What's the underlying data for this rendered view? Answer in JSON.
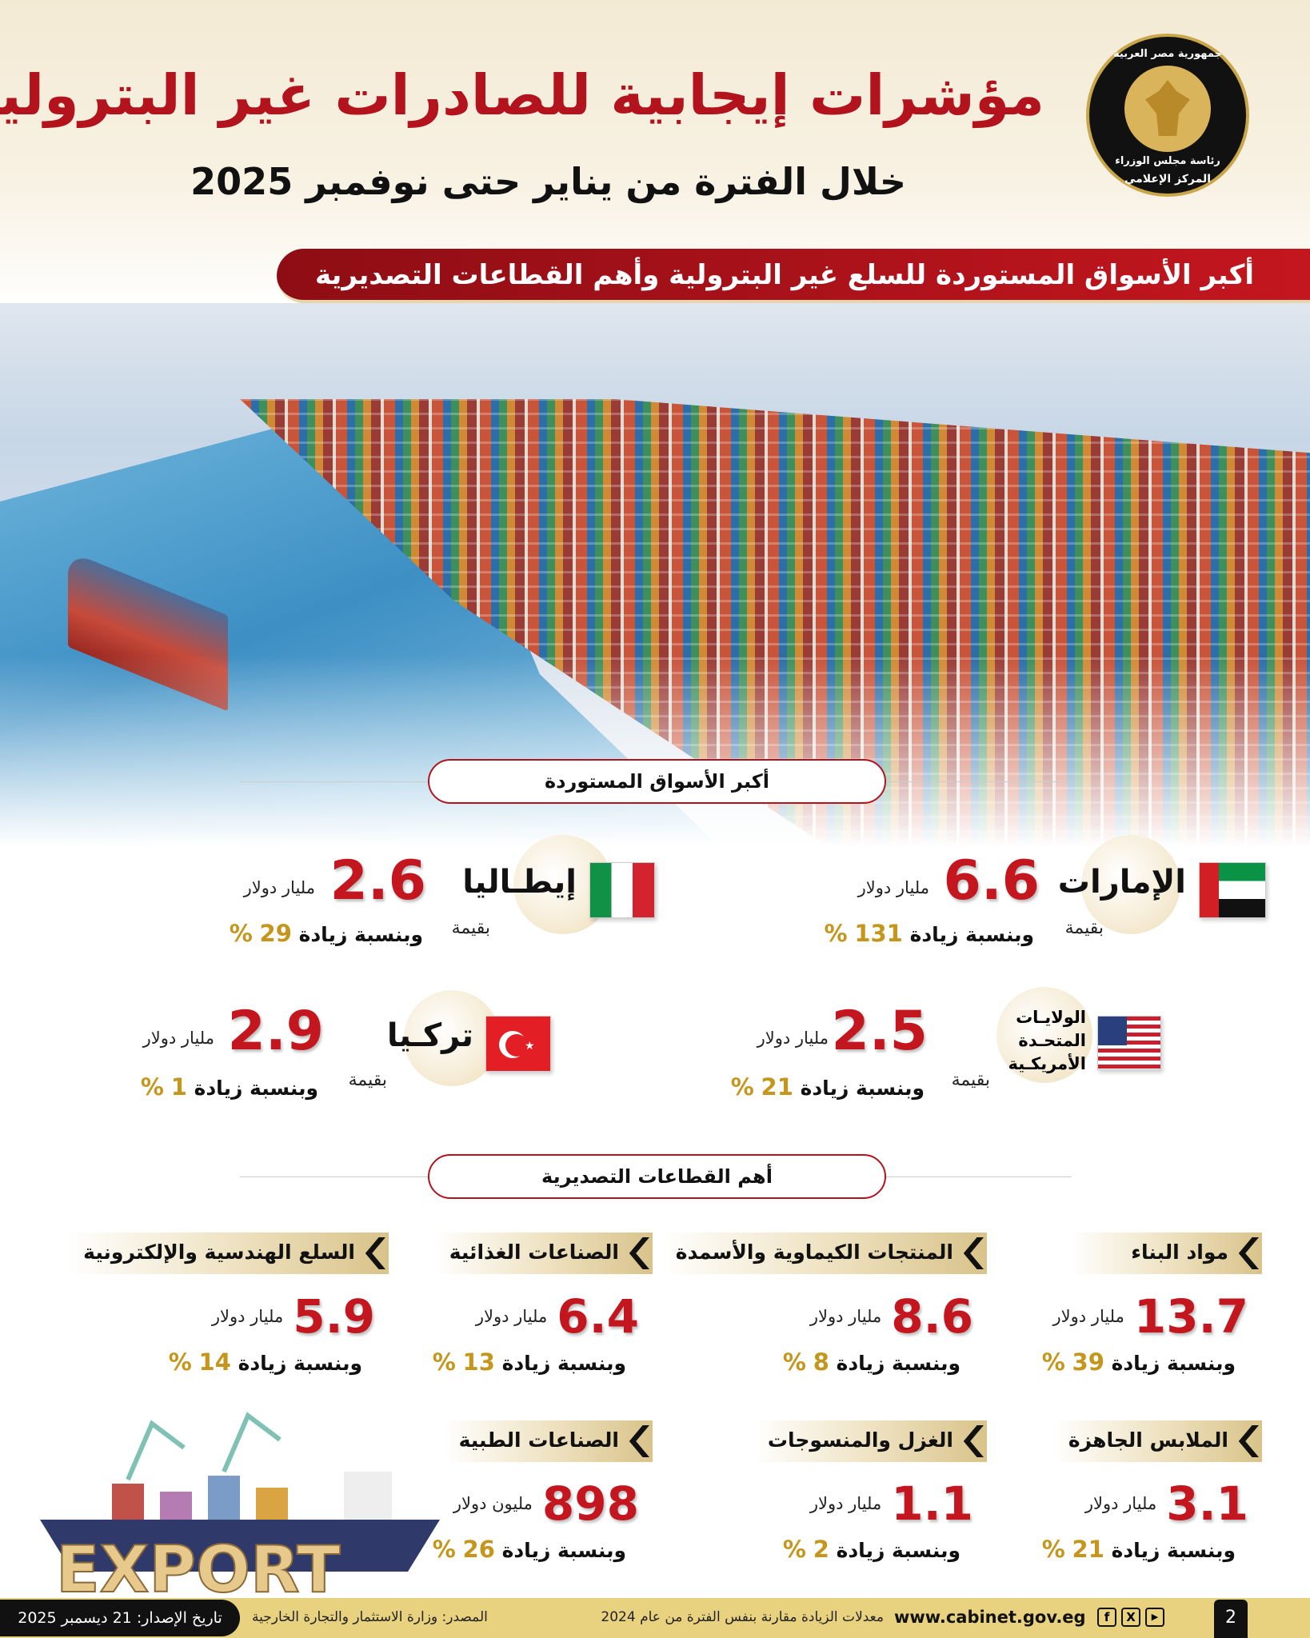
{
  "header": {
    "title": "مؤشرات إيجابية للصادرات غير البترولية",
    "subtitle": "خلال الفترة من يناير حتى نوفمبر 2025",
    "logo_text": [
      "جمهورية مصر العربية",
      "رئاسة مجلس الوزراء",
      "المركز الإعلامي"
    ]
  },
  "banner": "أكبر الأسواق المستوردة للسلع غير البترولية وأهم القطاعات التصديرية",
  "markets_title": "أكبر الأسواق المستوردة",
  "markets": [
    {
      "country": "الإمارات",
      "flag": "uae-flag",
      "value": "6.6",
      "unit": "مليار دولار",
      "value_prefix": "بقيمة",
      "increase_label": "وبنسبة زيادة",
      "increase": "131",
      "pct": "%"
    },
    {
      "country": "إيطـاليا",
      "flag": "italy-flag",
      "value": "2.6",
      "unit": "مليار دولار",
      "value_prefix": "بقيمة",
      "increase_label": "وبنسبة زيادة",
      "increase": "29",
      "pct": "%"
    },
    {
      "country": "الولايـات المتحـدة الأمريكـية",
      "country_lines": [
        "الولايـات",
        "المتحـدة",
        "الأمريكـية"
      ],
      "flag": "usa-flag",
      "value": "2.5",
      "unit": "مليار دولار",
      "value_prefix": "بقيمة",
      "increase_label": "وبنسبة زيادة",
      "increase": "21",
      "pct": "%"
    },
    {
      "country": "تركـيا",
      "flag": "turkey-flag",
      "value": "2.9",
      "unit": "مليار دولار",
      "value_prefix": "بقيمة",
      "increase_label": "وبنسبة زيادة",
      "increase": "1",
      "pct": "%"
    }
  ],
  "sectors_title": "أهم القطاعات التصديرية",
  "sectors": [
    {
      "name": "مواد البناء",
      "value": "13.7",
      "unit": "مليار دولار",
      "increase_label": "وبنسبة زيادة",
      "increase": "39",
      "pct": "%"
    },
    {
      "name": "المنتجات الكيماوية والأسمدة",
      "value": "8.6",
      "unit": "مليار دولار",
      "increase_label": "وبنسبة زيادة",
      "increase": "8",
      "pct": "%"
    },
    {
      "name": "الصناعات الغذائية",
      "value": "6.4",
      "unit": "مليار دولار",
      "increase_label": "وبنسبة زيادة",
      "increase": "13",
      "pct": "%"
    },
    {
      "name": "السلع الهندسية والإلكترونية",
      "value": "5.9",
      "unit": "مليار دولار",
      "increase_label": "وبنسبة زيادة",
      "increase": "14",
      "pct": "%"
    },
    {
      "name": "الملابس الجاهزة",
      "value": "3.1",
      "unit": "مليار دولار",
      "increase_label": "وبنسبة زيادة",
      "increase": "21",
      "pct": "%"
    },
    {
      "name": "الغزل والمنسوجات",
      "value": "1.1",
      "unit": "مليار دولار",
      "increase_label": "وبنسبة زيادة",
      "increase": "2",
      "pct": "%"
    },
    {
      "name": "الصناعات الطبية",
      "value": "898",
      "unit": "مليون دولار",
      "increase_label": "وبنسبة زيادة",
      "increase": "26",
      "pct": "%"
    }
  ],
  "illustration_text": "EXPORT",
  "footer": {
    "date": "تاريخ الإصدار: 21 ديسمبر 2025",
    "source": "المصدر: وزارة الاستثمار والتجارة الخارجية",
    "note": "معدلات الزيادة مقارنة بنفس الفترة من عام 2024",
    "website": "www.cabinet.gov.eg",
    "social": [
      "f",
      "X",
      "▶"
    ],
    "page": "2"
  },
  "colors": {
    "accent_red": "#b3131d",
    "gold": "#c4961c",
    "footer_bg": "#e9d27f"
  }
}
